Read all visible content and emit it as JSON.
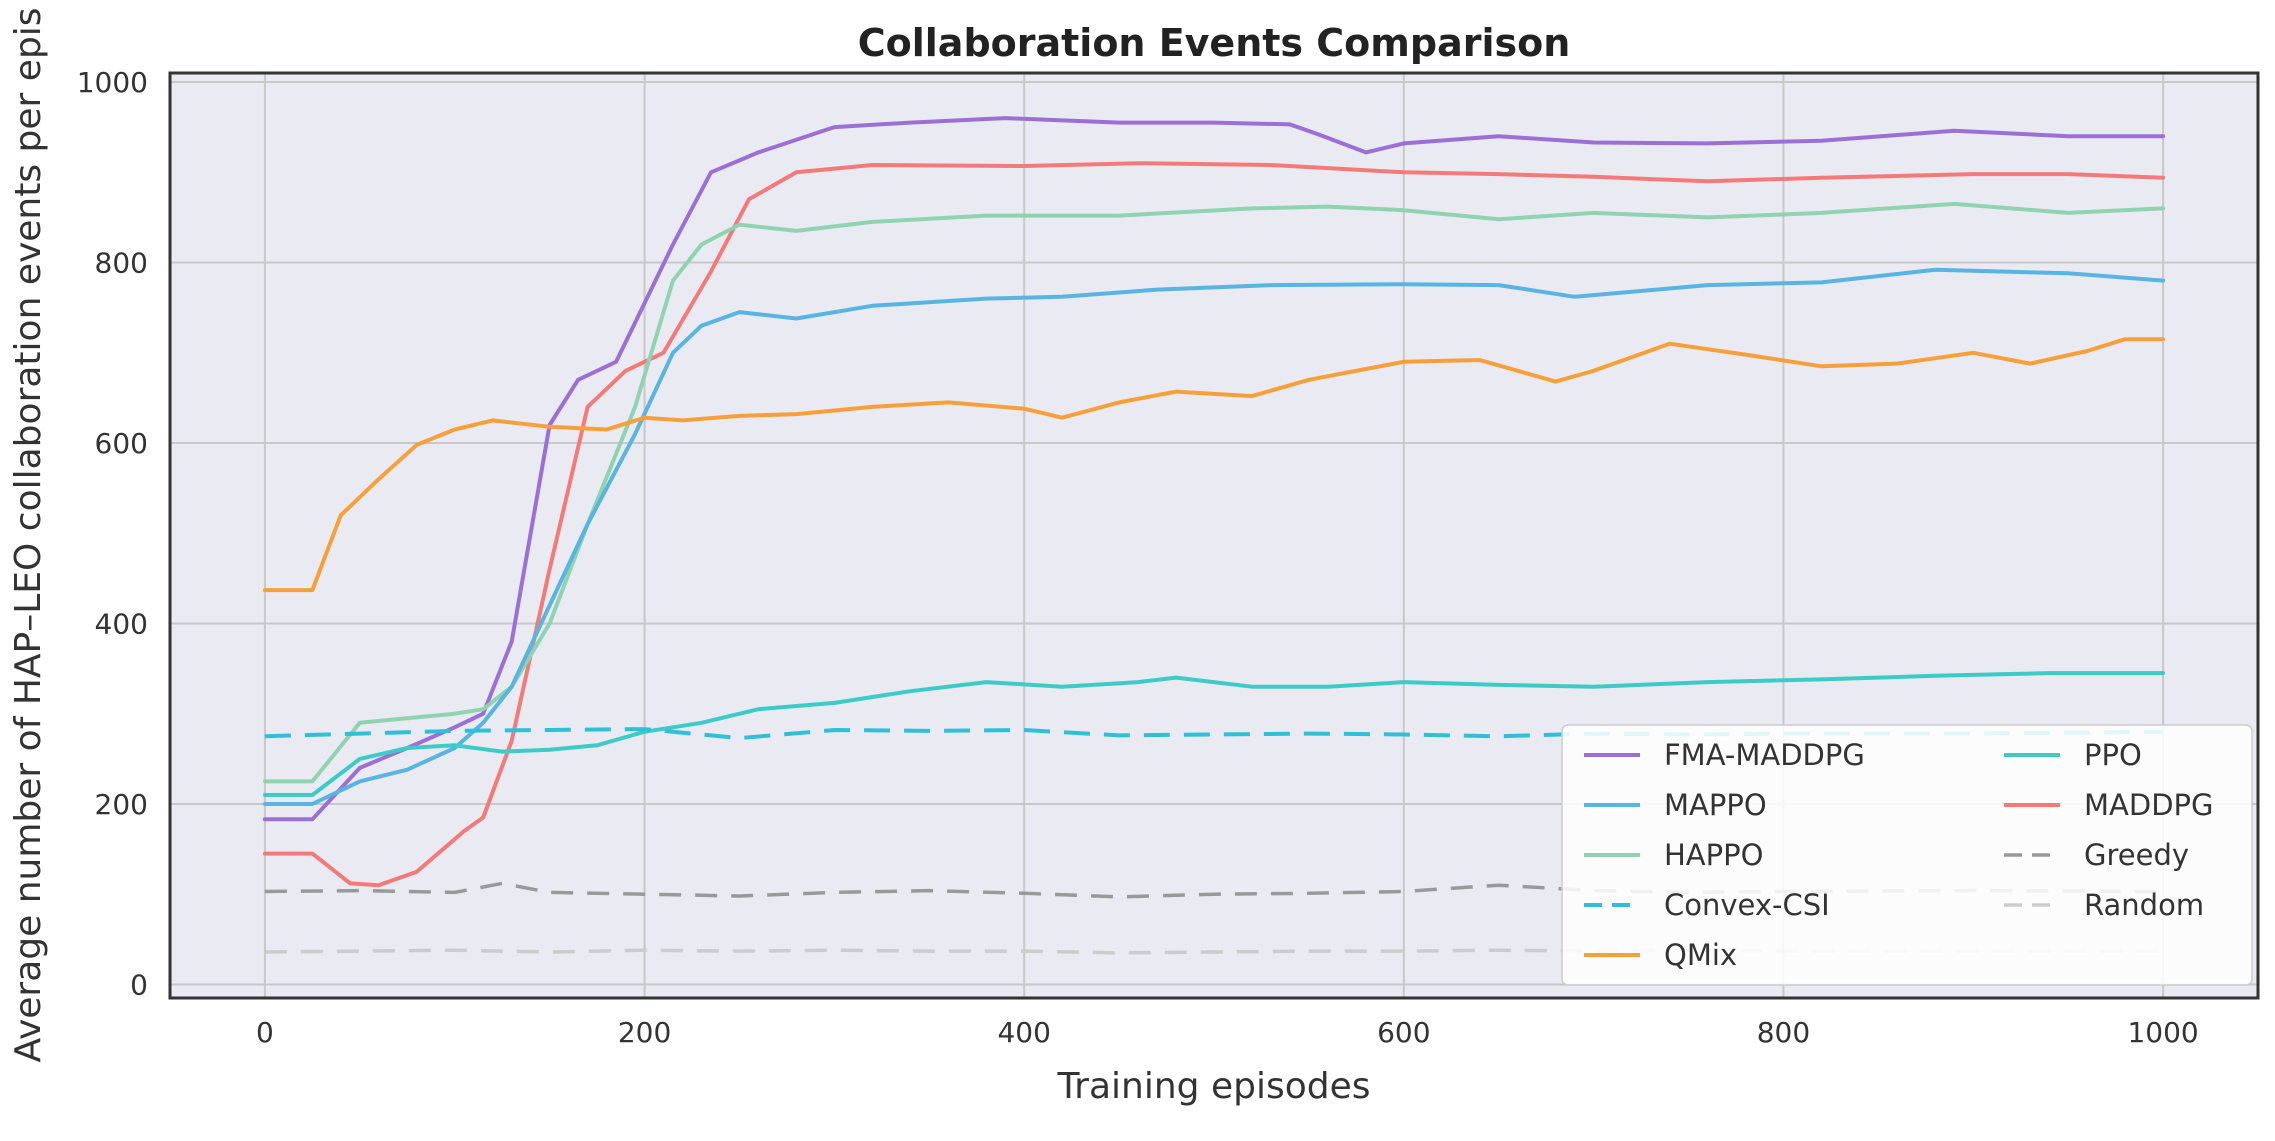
{
  "chart_data": {
    "type": "line",
    "title": "Collaboration Events Comparison",
    "xlabel": "Training episodes",
    "ylabel": "Average number of HAP–LEO collaboration events per epis",
    "xlim": [
      -50,
      1050
    ],
    "ylim": [
      -15,
      1010
    ],
    "xticks": [
      0,
      200,
      400,
      600,
      800,
      1000
    ],
    "yticks": [
      0,
      200,
      400,
      600,
      800,
      1000
    ],
    "grid": true,
    "legend_position": "lower-right",
    "series": [
      {
        "name": "FMA-MADDPG",
        "color": "#9b6fd6",
        "dash": "solid",
        "width": 4,
        "points": [
          [
            0,
            183
          ],
          [
            25,
            183
          ],
          [
            50,
            240
          ],
          [
            75,
            262
          ],
          [
            100,
            285
          ],
          [
            115,
            300
          ],
          [
            130,
            380
          ],
          [
            150,
            620
          ],
          [
            165,
            670
          ],
          [
            185,
            690
          ],
          [
            215,
            820
          ],
          [
            235,
            900
          ],
          [
            260,
            922
          ],
          [
            300,
            950
          ],
          [
            340,
            955
          ],
          [
            390,
            960
          ],
          [
            450,
            955
          ],
          [
            500,
            955
          ],
          [
            540,
            953
          ],
          [
            555,
            942
          ],
          [
            580,
            922
          ],
          [
            600,
            932
          ],
          [
            650,
            940
          ],
          [
            700,
            933
          ],
          [
            760,
            932
          ],
          [
            820,
            935
          ],
          [
            890,
            946
          ],
          [
            950,
            940
          ],
          [
            1000,
            940
          ]
        ]
      },
      {
        "name": "MADDPG",
        "color": "#f47a7a",
        "dash": "solid",
        "width": 4,
        "points": [
          [
            0,
            145
          ],
          [
            25,
            145
          ],
          [
            45,
            112
          ],
          [
            60,
            110
          ],
          [
            80,
            125
          ],
          [
            105,
            170
          ],
          [
            115,
            185
          ],
          [
            130,
            270
          ],
          [
            150,
            460
          ],
          [
            170,
            640
          ],
          [
            190,
            680
          ],
          [
            210,
            700
          ],
          [
            235,
            790
          ],
          [
            255,
            870
          ],
          [
            280,
            900
          ],
          [
            320,
            908
          ],
          [
            400,
            907
          ],
          [
            460,
            910
          ],
          [
            530,
            908
          ],
          [
            600,
            900
          ],
          [
            650,
            898
          ],
          [
            700,
            895
          ],
          [
            760,
            890
          ],
          [
            820,
            894
          ],
          [
            900,
            898
          ],
          [
            950,
            898
          ],
          [
            1000,
            894
          ]
        ]
      },
      {
        "name": "HAPPO",
        "color": "#8fd3b0",
        "dash": "solid",
        "width": 4,
        "points": [
          [
            0,
            225
          ],
          [
            25,
            225
          ],
          [
            50,
            290
          ],
          [
            75,
            295
          ],
          [
            100,
            300
          ],
          [
            115,
            305
          ],
          [
            130,
            330
          ],
          [
            150,
            400
          ],
          [
            170,
            510
          ],
          [
            195,
            640
          ],
          [
            215,
            780
          ],
          [
            230,
            820
          ],
          [
            250,
            842
          ],
          [
            280,
            835
          ],
          [
            320,
            845
          ],
          [
            380,
            852
          ],
          [
            450,
            852
          ],
          [
            520,
            860
          ],
          [
            560,
            862
          ],
          [
            600,
            858
          ],
          [
            650,
            848
          ],
          [
            700,
            855
          ],
          [
            760,
            850
          ],
          [
            820,
            855
          ],
          [
            890,
            865
          ],
          [
            950,
            855
          ],
          [
            1000,
            860
          ]
        ]
      },
      {
        "name": "MAPPO",
        "color": "#58b4e0",
        "dash": "solid",
        "width": 4,
        "points": [
          [
            0,
            200
          ],
          [
            25,
            200
          ],
          [
            50,
            225
          ],
          [
            75,
            238
          ],
          [
            100,
            262
          ],
          [
            115,
            290
          ],
          [
            130,
            330
          ],
          [
            150,
            420
          ],
          [
            170,
            510
          ],
          [
            195,
            610
          ],
          [
            215,
            700
          ],
          [
            230,
            730
          ],
          [
            250,
            745
          ],
          [
            280,
            738
          ],
          [
            320,
            752
          ],
          [
            380,
            760
          ],
          [
            420,
            762
          ],
          [
            470,
            770
          ],
          [
            530,
            775
          ],
          [
            600,
            776
          ],
          [
            650,
            775
          ],
          [
            690,
            762
          ],
          [
            760,
            775
          ],
          [
            820,
            778
          ],
          [
            880,
            792
          ],
          [
            950,
            788
          ],
          [
            1000,
            780
          ]
        ]
      },
      {
        "name": "PPO",
        "color": "#3ccbc7",
        "dash": "solid",
        "width": 4,
        "points": [
          [
            0,
            210
          ],
          [
            25,
            210
          ],
          [
            50,
            250
          ],
          [
            75,
            262
          ],
          [
            100,
            265
          ],
          [
            125,
            258
          ],
          [
            150,
            260
          ],
          [
            175,
            265
          ],
          [
            200,
            280
          ],
          [
            230,
            290
          ],
          [
            260,
            305
          ],
          [
            300,
            312
          ],
          [
            340,
            325
          ],
          [
            380,
            335
          ],
          [
            420,
            330
          ],
          [
            460,
            335
          ],
          [
            480,
            340
          ],
          [
            520,
            330
          ],
          [
            560,
            330
          ],
          [
            600,
            335
          ],
          [
            650,
            332
          ],
          [
            700,
            330
          ],
          [
            760,
            335
          ],
          [
            820,
            338
          ],
          [
            880,
            342
          ],
          [
            940,
            345
          ],
          [
            1000,
            345
          ]
        ]
      },
      {
        "name": "Convex-CSI",
        "color": "#2fc0d8",
        "dash": "26,14",
        "width": 4,
        "points": [
          [
            0,
            275
          ],
          [
            50,
            278
          ],
          [
            100,
            281
          ],
          [
            150,
            282
          ],
          [
            200,
            283
          ],
          [
            250,
            273
          ],
          [
            300,
            282
          ],
          [
            350,
            281
          ],
          [
            400,
            282
          ],
          [
            450,
            276
          ],
          [
            500,
            277
          ],
          [
            550,
            278
          ],
          [
            600,
            277
          ],
          [
            650,
            275
          ],
          [
            700,
            278
          ],
          [
            750,
            277
          ],
          [
            800,
            278
          ],
          [
            900,
            278
          ],
          [
            1000,
            280
          ]
        ]
      },
      {
        "name": "QMix",
        "color": "#f7a03a",
        "dash": "solid",
        "width": 4,
        "points": [
          [
            0,
            437
          ],
          [
            25,
            437
          ],
          [
            40,
            520
          ],
          [
            60,
            560
          ],
          [
            80,
            598
          ],
          [
            100,
            615
          ],
          [
            120,
            625
          ],
          [
            150,
            618
          ],
          [
            180,
            615
          ],
          [
            200,
            628
          ],
          [
            220,
            625
          ],
          [
            250,
            630
          ],
          [
            280,
            632
          ],
          [
            320,
            640
          ],
          [
            360,
            645
          ],
          [
            400,
            638
          ],
          [
            420,
            628
          ],
          [
            450,
            645
          ],
          [
            480,
            657
          ],
          [
            520,
            652
          ],
          [
            550,
            670
          ],
          [
            580,
            682
          ],
          [
            600,
            690
          ],
          [
            640,
            692
          ],
          [
            680,
            668
          ],
          [
            700,
            680
          ],
          [
            740,
            710
          ],
          [
            780,
            698
          ],
          [
            820,
            685
          ],
          [
            860,
            688
          ],
          [
            900,
            700
          ],
          [
            930,
            688
          ],
          [
            960,
            702
          ],
          [
            980,
            715
          ],
          [
            1000,
            715
          ]
        ]
      },
      {
        "name": "Greedy",
        "color": "#999999",
        "dash": "22,14",
        "width": 3.5,
        "points": [
          [
            0,
            103
          ],
          [
            50,
            104
          ],
          [
            100,
            102
          ],
          [
            125,
            112
          ],
          [
            150,
            102
          ],
          [
            200,
            100
          ],
          [
            250,
            98
          ],
          [
            300,
            102
          ],
          [
            350,
            104
          ],
          [
            400,
            101
          ],
          [
            450,
            97
          ],
          [
            500,
            100
          ],
          [
            550,
            101
          ],
          [
            600,
            103
          ],
          [
            650,
            110
          ],
          [
            700,
            104
          ],
          [
            750,
            102
          ],
          [
            800,
            103
          ],
          [
            900,
            104
          ],
          [
            1000,
            103
          ]
        ]
      },
      {
        "name": "Random",
        "color": "#cccccc",
        "dash": "22,14",
        "width": 3.5,
        "points": [
          [
            0,
            36
          ],
          [
            50,
            37
          ],
          [
            100,
            38
          ],
          [
            150,
            36
          ],
          [
            200,
            38
          ],
          [
            250,
            37
          ],
          [
            300,
            38
          ],
          [
            350,
            37
          ],
          [
            400,
            37
          ],
          [
            450,
            35
          ],
          [
            500,
            36
          ],
          [
            550,
            37
          ],
          [
            600,
            37
          ],
          [
            650,
            38
          ],
          [
            700,
            37
          ],
          [
            750,
            38
          ],
          [
            800,
            37
          ],
          [
            900,
            37
          ],
          [
            1000,
            37
          ]
        ]
      }
    ],
    "legend_order": [
      "FMA-MADDPG",
      "PPO",
      "MAPPO",
      "MADDPG",
      "HAPPO",
      "Greedy",
      "Convex-CSI",
      "Random",
      "QMix"
    ]
  }
}
